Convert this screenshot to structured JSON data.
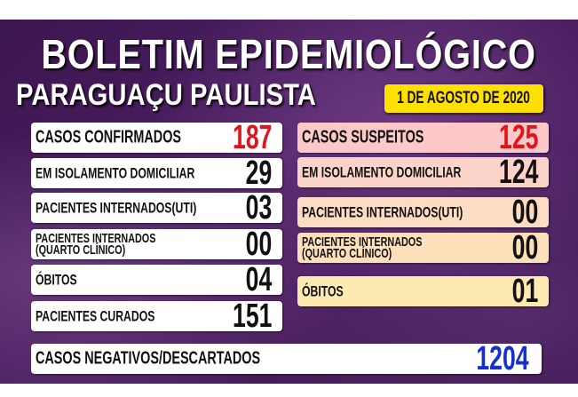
{
  "title": "BOLETIM EPIDEMIOLÓGICO",
  "city": "PARAGUAÇU PAULISTA",
  "date": "1 DE AGOSTO DE 2020",
  "colors": {
    "background": "#451a5a",
    "date_badge": "#ffe000",
    "confirmed_value": "#e0141c",
    "negative_value": "#1530d0"
  },
  "confirmed": {
    "total": {
      "label": "CASOS CONFIRMADOS",
      "value": "187"
    },
    "items": [
      {
        "label": "EM ISOLAMENTO DOMICILIAR",
        "value": "29"
      },
      {
        "label": "PACIENTES INTERNADOS(UTI)",
        "value": "03"
      },
      {
        "label": "PACIENTES INTERNADOS",
        "label2": "(QUARTO CLÍNICO)",
        "value": "00"
      },
      {
        "label": "ÓBITOS",
        "value": "04"
      },
      {
        "label": "PACIENTES CURADOS",
        "value": "151"
      }
    ]
  },
  "suspected": {
    "total": {
      "label": "CASOS SUSPEITOS",
      "value": "125"
    },
    "items": [
      {
        "label": "EM ISOLAMENTO DOMICILIAR",
        "value": "124"
      },
      {
        "label": "PACIENTES INTERNADOS(UTI)",
        "value": "00"
      },
      {
        "label": "PACIENTES INTERNADOS",
        "label2": "(QUARTO CLÍNICO)",
        "value": "00"
      },
      {
        "label": "ÓBITOS",
        "value": "01"
      }
    ]
  },
  "negative": {
    "label": "CASOS NEGATIVOS/DESCARTADOS",
    "value": "1204"
  }
}
